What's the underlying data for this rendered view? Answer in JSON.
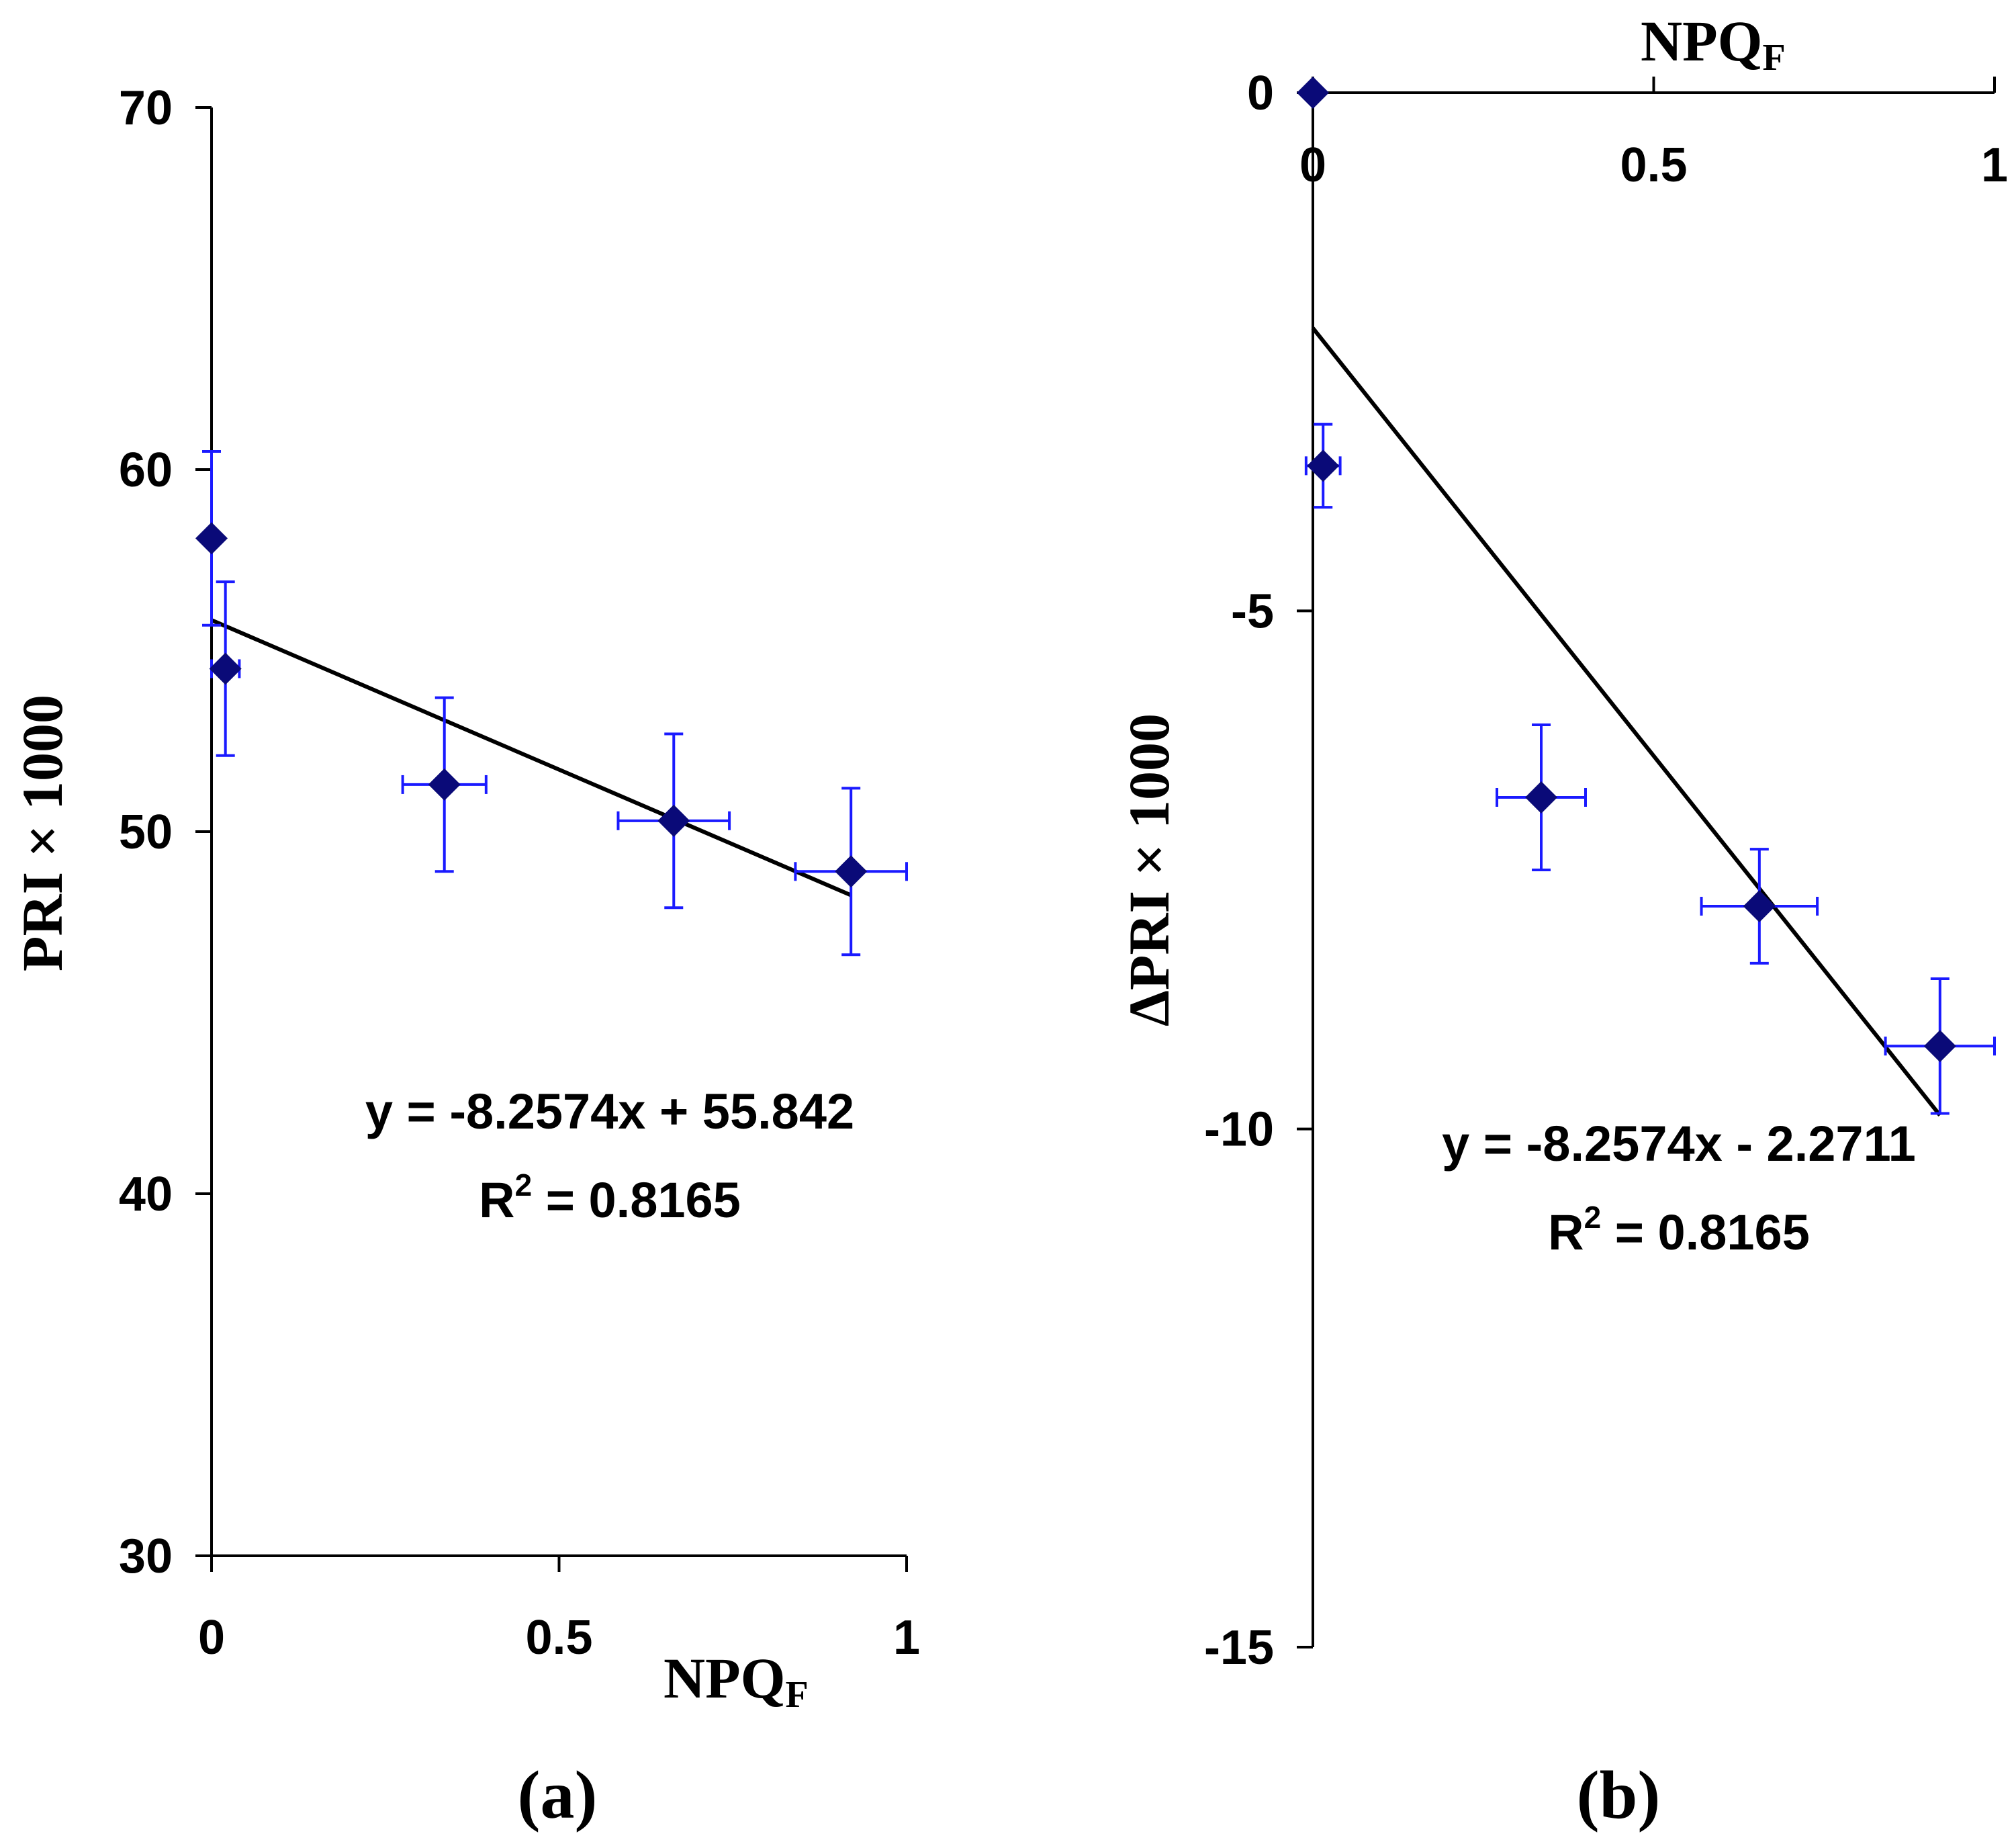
{
  "chart_data": [
    {
      "type": "scatter",
      "panel_label": "(a)",
      "xlabel": "NPQ",
      "xlabel_sub": "F",
      "ylabel": "PRI × 1000",
      "xlim": [
        0,
        1
      ],
      "ylim": [
        30,
        70
      ],
      "x_ticks": [
        0,
        0.5,
        1
      ],
      "x_tick_labels": [
        "0",
        "0.5",
        "1"
      ],
      "y_ticks": [
        30,
        40,
        50,
        60,
        70
      ],
      "y_tick_labels": [
        "30",
        "40",
        "50",
        "60",
        "70"
      ],
      "x_axis_position": "bottom",
      "points": [
        {
          "x": 0.0,
          "y": 58.1,
          "xerr": 0.0,
          "yerr": 2.4
        },
        {
          "x": 0.02,
          "y": 54.5,
          "xerr": 0.02,
          "yerr": 2.4
        },
        {
          "x": 0.335,
          "y": 51.3,
          "xerr": 0.06,
          "yerr": 2.4
        },
        {
          "x": 0.665,
          "y": 50.3,
          "xerr": 0.08,
          "yerr": 2.4
        },
        {
          "x": 0.92,
          "y": 48.9,
          "xerr": 0.08,
          "yerr": 2.3
        }
      ],
      "trendline": {
        "slope": -8.2574,
        "intercept": 55.842,
        "x_range": [
          0,
          0.92
        ]
      },
      "equation": "y = -8.2574x + 55.842",
      "r2_prefix": "R",
      "r2_exp": "2",
      "r2_value": " = 0.8165",
      "marker_color": "#0a0a78",
      "error_color": "#1a1aff",
      "line_color": "#000000"
    },
    {
      "type": "scatter",
      "panel_label": "(b)",
      "xlabel": "NPQ",
      "xlabel_sub": "F",
      "ylabel": "ΔPRI × 1000",
      "xlim": [
        0,
        1
      ],
      "ylim": [
        -15,
        0
      ],
      "x_ticks": [
        0,
        0.5,
        1
      ],
      "x_tick_labels": [
        "0",
        "0.5",
        "1"
      ],
      "y_ticks": [
        -15,
        -10,
        -5,
        0
      ],
      "y_tick_labels": [
        "-15",
        "-10",
        "-5",
        "0"
      ],
      "x_axis_position": "top",
      "points": [
        {
          "x": 0.0,
          "y": 0.0,
          "xerr": 0.0,
          "yerr": 0.0
        },
        {
          "x": 0.015,
          "y": -3.6,
          "xerr": 0.025,
          "yerr": 0.4
        },
        {
          "x": 0.335,
          "y": -6.8,
          "xerr": 0.065,
          "yerr": 0.7
        },
        {
          "x": 0.655,
          "y": -7.85,
          "xerr": 0.085,
          "yerr": 0.55
        },
        {
          "x": 0.92,
          "y": -9.2,
          "xerr": 0.08,
          "yerr": 0.65
        }
      ],
      "trendline": {
        "slope": -8.2574,
        "intercept": -2.2711,
        "x_range": [
          0,
          0.92
        ]
      },
      "equation": "y = -8.2574x - 2.2711",
      "r2_prefix": "R",
      "r2_exp": "2",
      "r2_value": " = 0.8165",
      "marker_color": "#0a0a78",
      "error_color": "#1a1aff",
      "line_color": "#000000"
    }
  ]
}
